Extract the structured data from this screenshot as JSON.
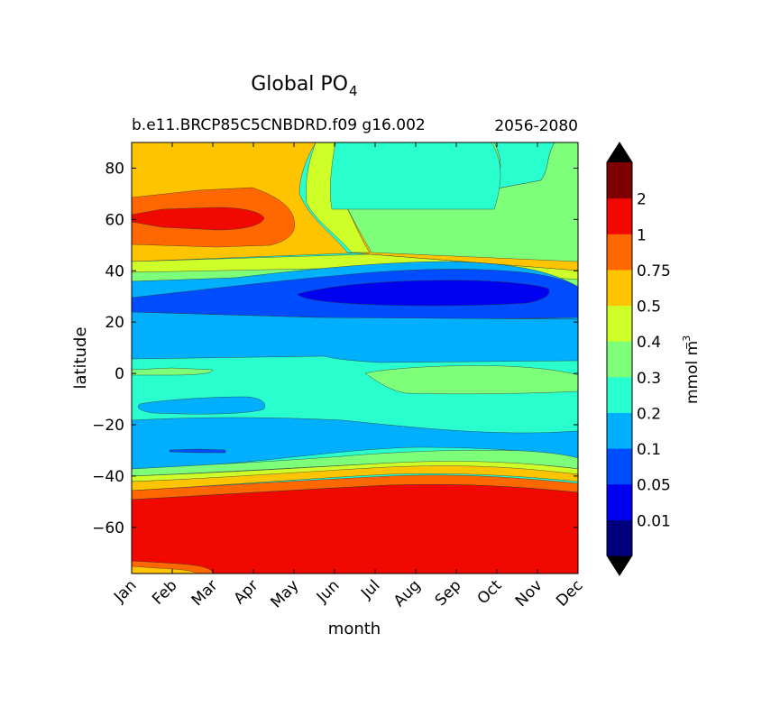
{
  "chart_data": {
    "type": "heatmap",
    "title_main": "Global PO",
    "title_sub": "4",
    "left_subtitle": "b.e11.BRCP85C5CNBDRD.f09 g16.002",
    "right_subtitle": "2056-2080",
    "xlabel": "month",
    "ylabel": "latitude",
    "x_ticks": [
      "Jan",
      "Feb",
      "Mar",
      "Apr",
      "May",
      "Jun",
      "Jul",
      "Aug",
      "Sep",
      "Oct",
      "Nov",
      "Dec"
    ],
    "y_ticks": [
      80,
      60,
      40,
      20,
      0,
      -20,
      -40,
      -60
    ],
    "y_tick_labels": [
      "80",
      "60",
      "40",
      "20",
      "0",
      "−20",
      "−40",
      "−60"
    ],
    "ylim": [
      -78,
      90
    ],
    "xlim": [
      0,
      11
    ],
    "colorbar": {
      "label": "mmol m",
      "label_exp": "−3",
      "levels": [
        "0.01",
        "0.05",
        "0.1",
        "0.2",
        "0.3",
        "0.4",
        "0.5",
        "0.75",
        "1",
        "2"
      ],
      "colors": [
        "#00007f",
        "#0000f1",
        "#004cff",
        "#00b0ff",
        "#29ffce",
        "#7dff7a",
        "#ceff29",
        "#ffc400",
        "#ff6800",
        "#f10800",
        "#7f0000"
      ],
      "under_color": "#000000",
      "over_color": "#000000"
    },
    "regions": [
      {
        "name": "background-0.3-0.4",
        "level": 4
      },
      {
        "name": "north-subtropic-0.5",
        "level": 7
      },
      {
        "name": "north-0.75",
        "level": 8
      },
      {
        "name": "north-1-2",
        "level": 9
      },
      {
        "name": "north-1-dec",
        "level": 8
      },
      {
        "name": "north-1-2-dec",
        "level": 9
      },
      {
        "name": "arctic-0.4-band",
        "level": 6
      },
      {
        "name": "arctic-0.3-0.4",
        "level": 5
      },
      {
        "name": "arctic-0.2-0.3",
        "level": 4
      },
      {
        "name": "nh-band-0.4",
        "level": 6
      },
      {
        "name": "nh-band-0.3",
        "level": 5
      },
      {
        "name": "nh-0.1-0.2",
        "level": 3
      },
      {
        "name": "nh-0.05-0.1",
        "level": 2
      },
      {
        "name": "nh-0.01-0.05",
        "level": 1
      },
      {
        "name": "tropic-0.1-0.2",
        "level": 3
      },
      {
        "name": "equator-0.3-0.4",
        "level": 5
      },
      {
        "name": "sh-0.1-0.2",
        "level": 3
      },
      {
        "name": "sh-sub-0.05",
        "level": 2
      },
      {
        "name": "south-0.3",
        "level": 5
      },
      {
        "name": "south-0.4",
        "level": 6
      },
      {
        "name": "south-0.5",
        "level": 7
      },
      {
        "name": "south-0.75",
        "level": 8
      },
      {
        "name": "south-1-2",
        "level": 9
      },
      {
        "name": "south-bottom-0.5",
        "level": 7
      },
      {
        "name": "south-bottom-0.75",
        "level": 8
      }
    ]
  }
}
